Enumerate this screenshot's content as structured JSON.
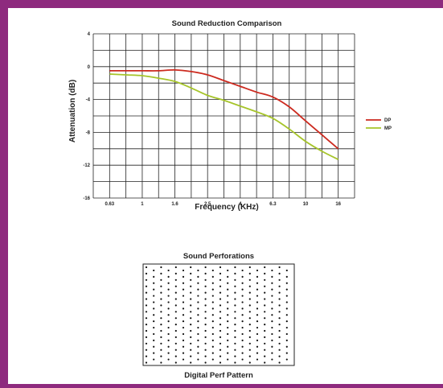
{
  "chart_data": {
    "type": "line",
    "title": "Sound Reduction Comparison",
    "xlabel": "Frequency (KHz)",
    "ylabel": "Attenuation (dB)",
    "x_tick_labels": [
      "0.63",
      "1",
      "1.6",
      "2.5",
      "4",
      "6.3",
      "10",
      "16"
    ],
    "y_ticks": [
      4,
      0,
      -4,
      -8,
      -12,
      -16
    ],
    "ylim": [
      -16,
      4
    ],
    "grid": true,
    "legend_position": "right",
    "series": [
      {
        "name": "DP",
        "color": "#cc2a1f",
        "x": [
          "0.63",
          "0.8",
          "1",
          "1.25",
          "1.6",
          "2",
          "2.5",
          "3.15",
          "4",
          "5",
          "6.3",
          "8",
          "10",
          "12.5",
          "16"
        ],
        "values": [
          -0.5,
          -0.5,
          -0.5,
          -0.5,
          -0.4,
          -0.6,
          -1.0,
          -1.7,
          -2.4,
          -3.1,
          -3.7,
          -4.9,
          -6.6,
          -8.3,
          -10.0
        ]
      },
      {
        "name": "MP",
        "color": "#a6c42a",
        "x": [
          "0.63",
          "0.8",
          "1",
          "1.25",
          "1.6",
          "2",
          "2.5",
          "3.15",
          "4",
          "5",
          "6.3",
          "8",
          "10",
          "12.5",
          "16"
        ],
        "values": [
          -0.9,
          -1.0,
          -1.1,
          -1.4,
          -1.8,
          -2.6,
          -3.5,
          -4.1,
          -4.8,
          -5.5,
          -6.3,
          -7.6,
          -9.1,
          -10.3,
          -11.3
        ]
      }
    ]
  },
  "perf": {
    "title": "Sound Perforations",
    "caption": "Digital Perf Pattern"
  }
}
